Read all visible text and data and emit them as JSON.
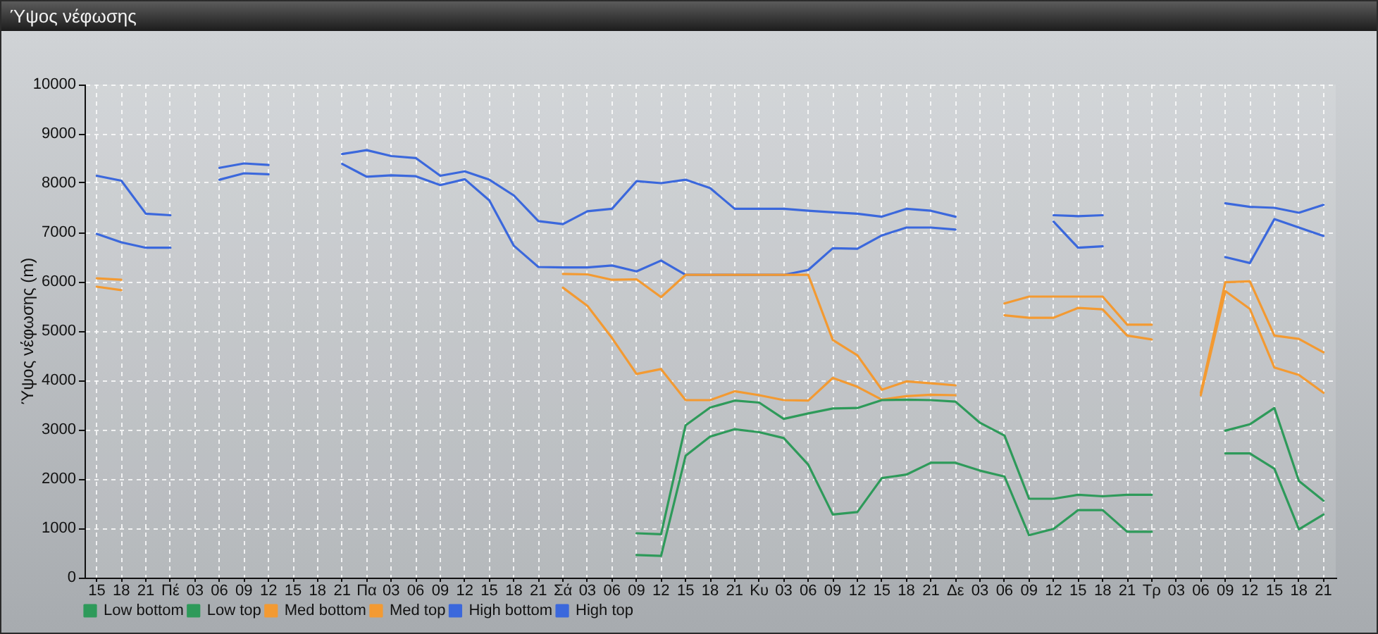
{
  "chart_data": {
    "type": "line",
    "title": "Ύψος νέφωσης",
    "ylabel": "Ύψος νέφωσης (m)",
    "categories": [
      "15",
      "18",
      "21",
      "Πέ",
      "03",
      "06",
      "09",
      "12",
      "15",
      "18",
      "21",
      "Πα",
      "03",
      "06",
      "09",
      "12",
      "15",
      "18",
      "21",
      "Σά",
      "03",
      "06",
      "09",
      "12",
      "15",
      "18",
      "21",
      "Κυ",
      "03",
      "06",
      "09",
      "12",
      "15",
      "18",
      "21",
      "Δε",
      "03",
      "06",
      "09",
      "12",
      "15",
      "18",
      "21",
      "Τρ",
      "03",
      "06",
      "09",
      "12",
      "15",
      "18",
      "21"
    ],
    "ylim": [
      0,
      10000
    ],
    "yticks": [
      0,
      1000,
      2000,
      3000,
      4000,
      5000,
      6000,
      7000,
      8000,
      9000,
      10000
    ],
    "grid": true,
    "legend": "bottom left",
    "line_style": "solid",
    "series": [
      {
        "name": "Low bottom",
        "color": "#2e9a5a",
        "values": [
          null,
          null,
          null,
          null,
          null,
          null,
          null,
          null,
          null,
          null,
          null,
          null,
          null,
          null,
          null,
          null,
          null,
          null,
          null,
          null,
          null,
          null,
          460,
          440,
          2470,
          2860,
          3010,
          2950,
          2830,
          2290,
          1280,
          1330,
          2020,
          2090,
          2330,
          2330,
          2170,
          2050,
          860,
          990,
          1370,
          1370,
          930,
          930,
          null,
          null,
          2520,
          2520,
          2210,
          980,
          1280
        ]
      },
      {
        "name": "Low top",
        "color": "#2e9a5a",
        "values": [
          null,
          null,
          null,
          null,
          null,
          null,
          null,
          null,
          null,
          null,
          null,
          null,
          null,
          null,
          null,
          null,
          null,
          null,
          null,
          null,
          null,
          null,
          900,
          880,
          3090,
          3450,
          3590,
          3550,
          3220,
          3330,
          3430,
          3440,
          3600,
          3610,
          3600,
          3570,
          3140,
          2880,
          1600,
          1600,
          1680,
          1650,
          1680,
          1680,
          null,
          null,
          2980,
          3110,
          3440,
          1960,
          1560
        ]
      },
      {
        "name": "Med bottom",
        "color": "#f39a32",
        "values": [
          5900,
          5830,
          null,
          null,
          null,
          null,
          null,
          null,
          null,
          null,
          null,
          null,
          null,
          null,
          null,
          null,
          null,
          null,
          null,
          5880,
          5510,
          4860,
          4130,
          4230,
          3600,
          3600,
          3780,
          3700,
          3600,
          3590,
          4050,
          3870,
          3610,
          3680,
          3710,
          3700,
          null,
          5320,
          5270,
          5270,
          5470,
          5440,
          4910,
          4830,
          null,
          3700,
          5810,
          5450,
          4260,
          4110,
          3750
        ]
      },
      {
        "name": "Med top",
        "color": "#f39a32",
        "values": [
          6070,
          6040,
          null,
          null,
          null,
          null,
          null,
          null,
          null,
          null,
          null,
          null,
          null,
          null,
          null,
          null,
          null,
          null,
          null,
          6160,
          6150,
          6040,
          6050,
          5690,
          6140,
          6140,
          6140,
          6140,
          6140,
          6140,
          4820,
          4510,
          3810,
          3980,
          3940,
          3900,
          null,
          5560,
          5700,
          5700,
          5700,
          5700,
          5130,
          5130,
          null,
          3750,
          5990,
          6010,
          4910,
          4840,
          4570
        ]
      },
      {
        "name": "High bottom",
        "color": "#3b68dc",
        "values": [
          6970,
          6800,
          6690,
          6690,
          null,
          8070,
          8200,
          8180,
          null,
          null,
          8390,
          8130,
          8160,
          8140,
          7960,
          8080,
          7650,
          6730,
          6300,
          6290,
          6290,
          6330,
          6210,
          6430,
          6140,
          6140,
          6140,
          6140,
          6140,
          6240,
          6680,
          6670,
          6940,
          7100,
          7100,
          7060,
          null,
          null,
          null,
          7220,
          6690,
          6720,
          null,
          null,
          null,
          null,
          6500,
          6380,
          7270,
          7100,
          6930
        ]
      },
      {
        "name": "High top",
        "color": "#3b68dc",
        "values": [
          8150,
          8050,
          7380,
          7350,
          null,
          8310,
          8400,
          8370,
          null,
          null,
          8590,
          8670,
          8550,
          8510,
          8150,
          8240,
          8070,
          7750,
          7230,
          7170,
          7430,
          7480,
          8040,
          8000,
          8070,
          7900,
          7480,
          7480,
          7480,
          7440,
          7410,
          7380,
          7320,
          7480,
          7440,
          7320,
          null,
          null,
          null,
          7350,
          7330,
          7350,
          null,
          null,
          null,
          null,
          7590,
          7520,
          7500,
          7400,
          7560
        ]
      }
    ]
  }
}
